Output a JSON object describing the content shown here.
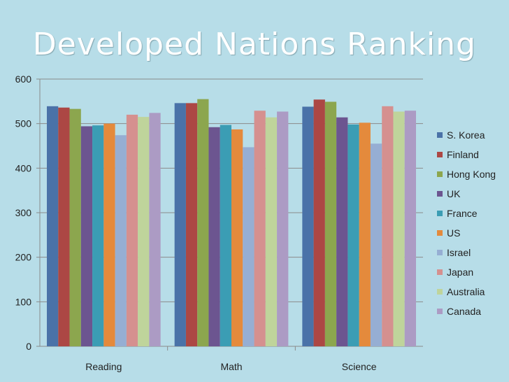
{
  "title": "Developed Nations Ranking",
  "chart_data": {
    "type": "bar",
    "title": "Developed Nations Ranking",
    "xlabel": "",
    "ylabel": "",
    "categories": [
      "Reading",
      "Math",
      "Science"
    ],
    "ylim": [
      0,
      600
    ],
    "yticks": [
      0,
      100,
      200,
      300,
      400,
      500,
      600
    ],
    "grid": true,
    "legend_position": "right",
    "series": [
      {
        "name": "S. Korea",
        "color": "#4a72a8",
        "values": [
          539,
          546,
          538
        ]
      },
      {
        "name": "Finland",
        "color": "#ac4744",
        "values": [
          536,
          546,
          554
        ]
      },
      {
        "name": "Hong Kong",
        "color": "#8ca64e",
        "values": [
          533,
          555,
          549
        ]
      },
      {
        "name": "UK",
        "color": "#6c5590",
        "values": [
          494,
          492,
          514
        ]
      },
      {
        "name": "France",
        "color": "#3b9db4",
        "values": [
          496,
          497,
          498
        ]
      },
      {
        "name": "US",
        "color": "#e48a3c",
        "values": [
          500,
          487,
          502
        ]
      },
      {
        "name": "Israel",
        "color": "#96aed3",
        "values": [
          474,
          447,
          455
        ]
      },
      {
        "name": "Japan",
        "color": "#d5908f",
        "values": [
          520,
          529,
          539
        ]
      },
      {
        "name": "Australia",
        "color": "#bfd49b",
        "values": [
          515,
          514,
          527
        ]
      },
      {
        "name": "Canada",
        "color": "#ac9bc4",
        "values": [
          524,
          527,
          529
        ]
      }
    ]
  }
}
